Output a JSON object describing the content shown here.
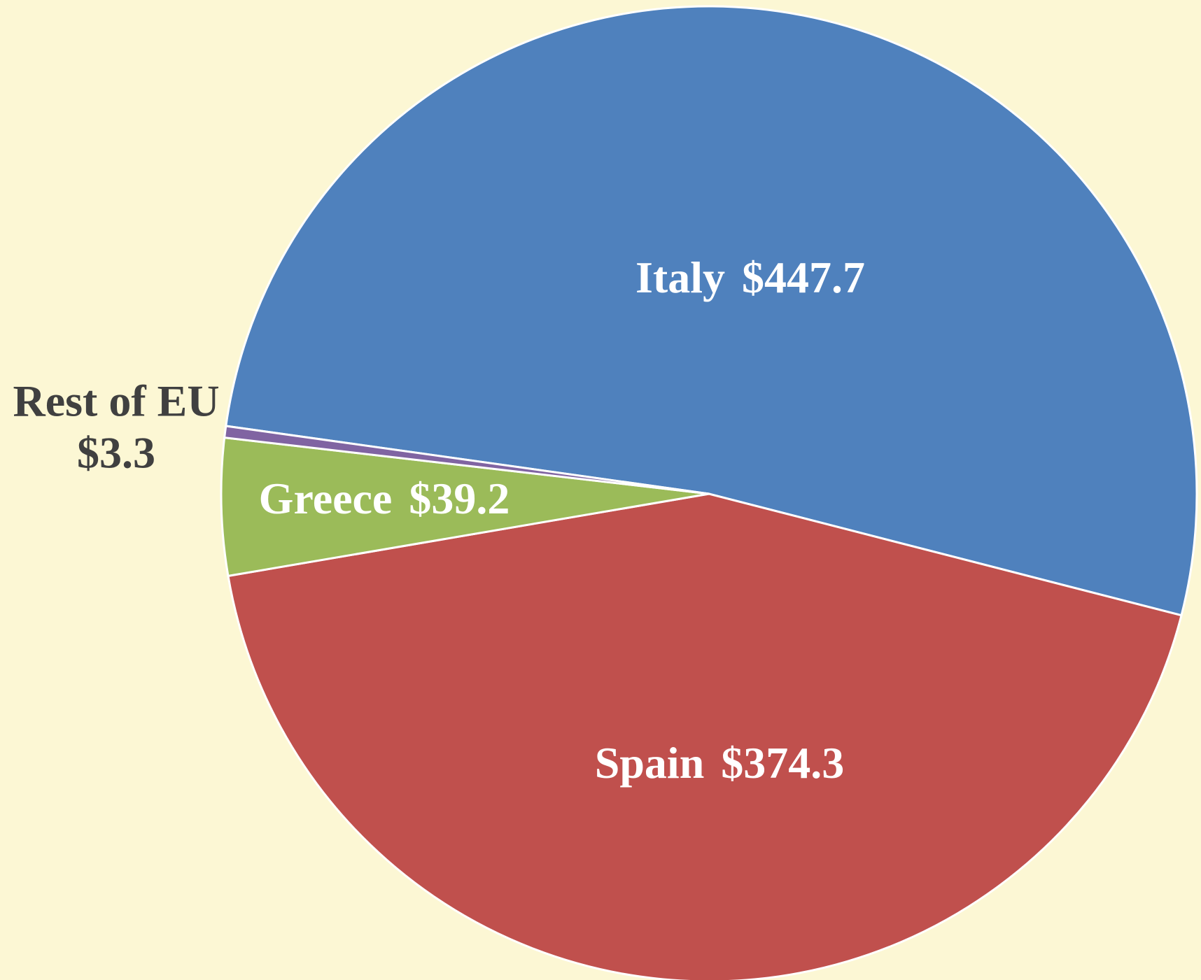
{
  "chart_data": {
    "type": "pie",
    "categories": [
      "Italy",
      "Spain",
      "Greece",
      "Rest of EU"
    ],
    "values": [
      447.7,
      374.3,
      39.2,
      3.3
    ],
    "value_labels": [
      "$447.7",
      "$374.3",
      "$39.2",
      "$3.3"
    ],
    "colors": [
      "#4f81bd",
      "#c0504d",
      "#9bbb59",
      "#8064a2"
    ]
  }
}
